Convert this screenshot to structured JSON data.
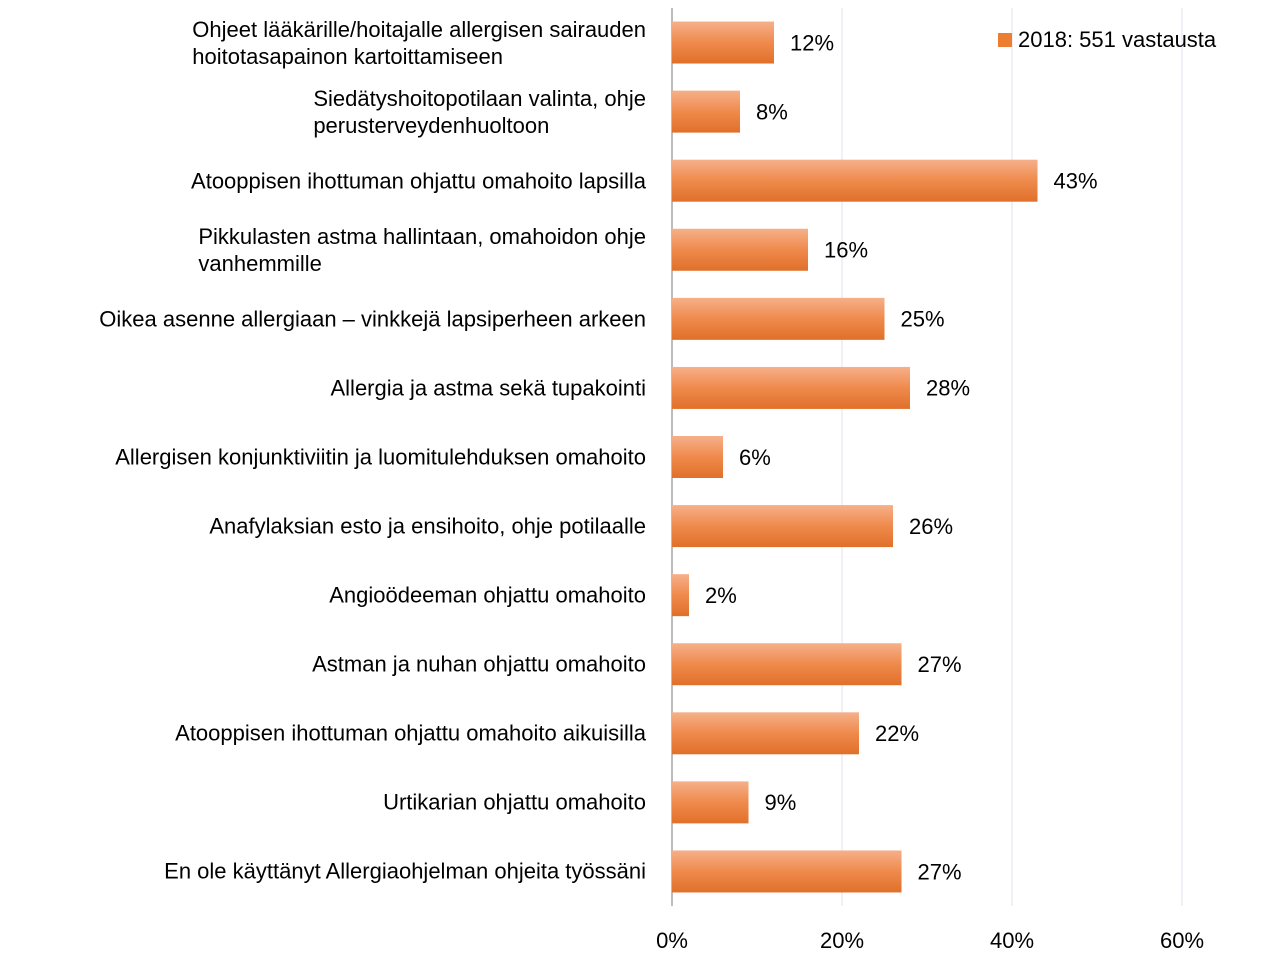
{
  "chart_data": {
    "type": "bar",
    "orientation": "horizontal",
    "categories": [
      "Ohjeet lääkärille/hoitajalle allergisen sairauden\nhoitotasapainon kartoittamiseen",
      "Siedätyshoitopotilaan valinta, ohje\nperusterveydenhuoltoon",
      "Atooppisen ihottuman ohjattu omahoito lapsilla",
      "Pikkulasten astma hallintaan, omahoidon ohje\nvanhemmille",
      "Oikea asenne allergiaan – vinkkejä lapsiperheen arkeen",
      "Allergia ja astma sekä tupakointi",
      "Allergisen konjunktiviitin ja luomitulehduksen omahoito",
      "Anafylaksian esto ja ensihoito, ohje potilaalle",
      "Angioödeeman ohjattu omahoito",
      "Astman ja nuhan ohjattu omahoito",
      "Atooppisen ihottuman ohjattu omahoito aikuisilla",
      "Urtikarian ohjattu omahoito",
      "En ole käyttänyt Allergiaohjelman ohjeita työssäni"
    ],
    "series": [
      {
        "name": "2018: 551 vastausta",
        "color": "#ed7d31",
        "values": [
          12,
          8,
          43,
          16,
          25,
          28,
          6,
          26,
          2,
          27,
          22,
          9,
          27
        ],
        "value_labels": [
          "12%",
          "8%",
          "43%",
          "16%",
          "25%",
          "28%",
          "6%",
          "26%",
          "2%",
          "27%",
          "22%",
          "9%",
          "27%"
        ]
      }
    ],
    "xlim": [
      0,
      60
    ],
    "xticks": [
      {
        "value": 0,
        "label": "0%"
      },
      {
        "value": 20,
        "label": "20%"
      },
      {
        "value": 40,
        "label": "40%"
      },
      {
        "value": 60,
        "label": "60%"
      }
    ],
    "grid": true,
    "legend": "top-right"
  }
}
